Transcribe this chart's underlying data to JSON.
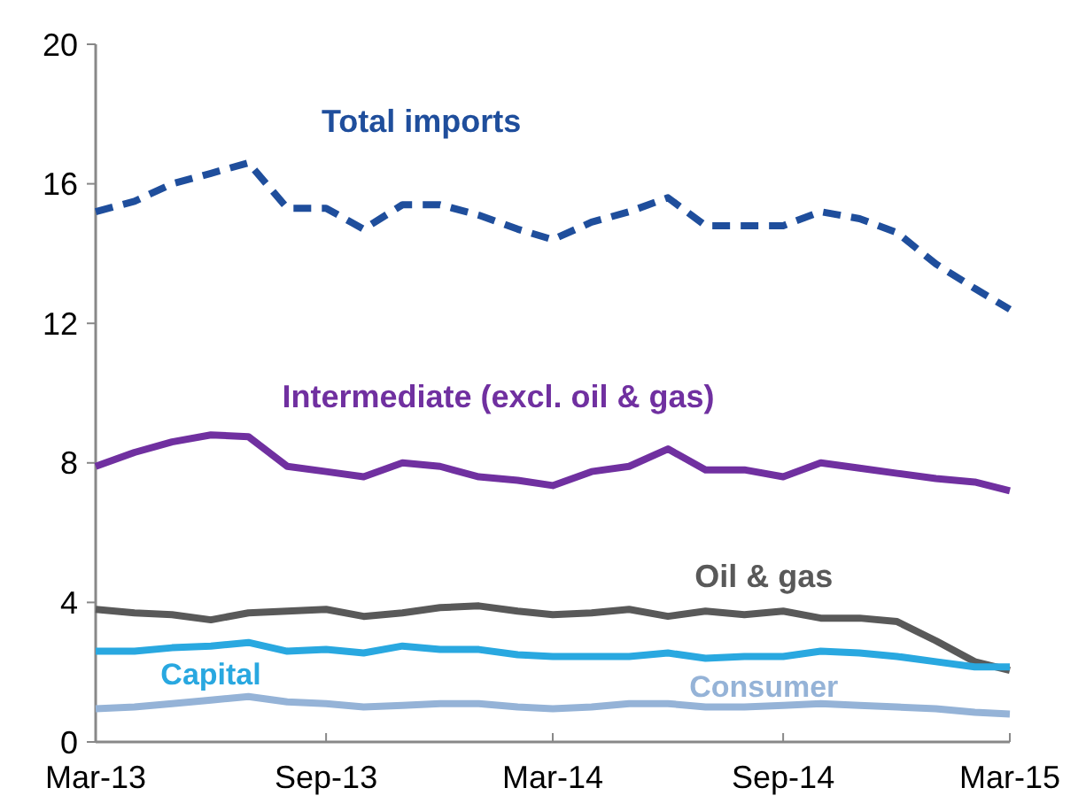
{
  "chart_data": {
    "type": "line",
    "x": [
      "2013-03",
      "2013-04",
      "2013-05",
      "2013-06",
      "2013-07",
      "2013-08",
      "2013-09",
      "2013-10",
      "2013-11",
      "2013-12",
      "2014-01",
      "2014-02",
      "2014-03",
      "2014-04",
      "2014-05",
      "2014-06",
      "2014-07",
      "2014-08",
      "2014-09",
      "2014-10",
      "2014-11",
      "2014-12",
      "2015-01",
      "2015-02",
      "2015-03"
    ],
    "xlim": [
      "2013-03",
      "2015-03"
    ],
    "xticks": [
      {
        "value": "2013-03",
        "label": "Mar-13"
      },
      {
        "value": "2013-09",
        "label": "Sep-13"
      },
      {
        "value": "2014-03",
        "label": "Mar-14"
      },
      {
        "value": "2014-09",
        "label": "Sep-14"
      },
      {
        "value": "2015-03",
        "label": "Mar-15"
      }
    ],
    "ylim": [
      0,
      20
    ],
    "yticks": [
      0,
      4,
      8,
      12,
      16,
      20
    ],
    "grid": false,
    "legend": false,
    "series": [
      {
        "name": "Total imports",
        "color": "#1f4e9c",
        "line_style": "dashed",
        "values": [
          15.2,
          15.5,
          16.0,
          16.3,
          16.6,
          15.3,
          15.3,
          14.7,
          15.4,
          15.4,
          15.1,
          14.7,
          14.4,
          14.9,
          15.2,
          15.6,
          14.8,
          14.8,
          14.8,
          15.2,
          15.0,
          14.6,
          13.7,
          13.0,
          12.4
        ]
      },
      {
        "name": "Intermediate (excl. oil & gas)",
        "color": "#7030a0",
        "line_style": "solid",
        "values": [
          7.9,
          8.3,
          8.6,
          8.8,
          8.75,
          7.9,
          7.75,
          7.6,
          8.0,
          7.9,
          7.6,
          7.5,
          7.35,
          7.75,
          7.9,
          8.4,
          7.8,
          7.8,
          7.6,
          8.0,
          7.85,
          7.7,
          7.55,
          7.45,
          7.2
        ]
      },
      {
        "name": "Oil & gas",
        "color": "#595959",
        "line_style": "solid",
        "values": [
          3.8,
          3.7,
          3.65,
          3.5,
          3.7,
          3.75,
          3.8,
          3.6,
          3.7,
          3.85,
          3.9,
          3.75,
          3.65,
          3.7,
          3.8,
          3.6,
          3.75,
          3.65,
          3.75,
          3.55,
          3.55,
          3.45,
          2.9,
          2.3,
          2.05
        ]
      },
      {
        "name": "Capital",
        "color": "#29a8e0",
        "line_style": "solid",
        "values": [
          2.6,
          2.6,
          2.7,
          2.75,
          2.85,
          2.6,
          2.65,
          2.55,
          2.75,
          2.65,
          2.65,
          2.5,
          2.45,
          2.45,
          2.45,
          2.55,
          2.4,
          2.45,
          2.45,
          2.6,
          2.55,
          2.45,
          2.3,
          2.15,
          2.15
        ]
      },
      {
        "name": "Consumer",
        "color": "#95b3d7",
        "line_style": "solid",
        "values": [
          0.95,
          1.0,
          1.1,
          1.2,
          1.3,
          1.15,
          1.1,
          1.0,
          1.05,
          1.1,
          1.1,
          1.0,
          0.95,
          1.0,
          1.1,
          1.1,
          1.0,
          1.0,
          1.05,
          1.1,
          1.05,
          1.0,
          0.95,
          0.85,
          0.8
        ]
      }
    ]
  }
}
